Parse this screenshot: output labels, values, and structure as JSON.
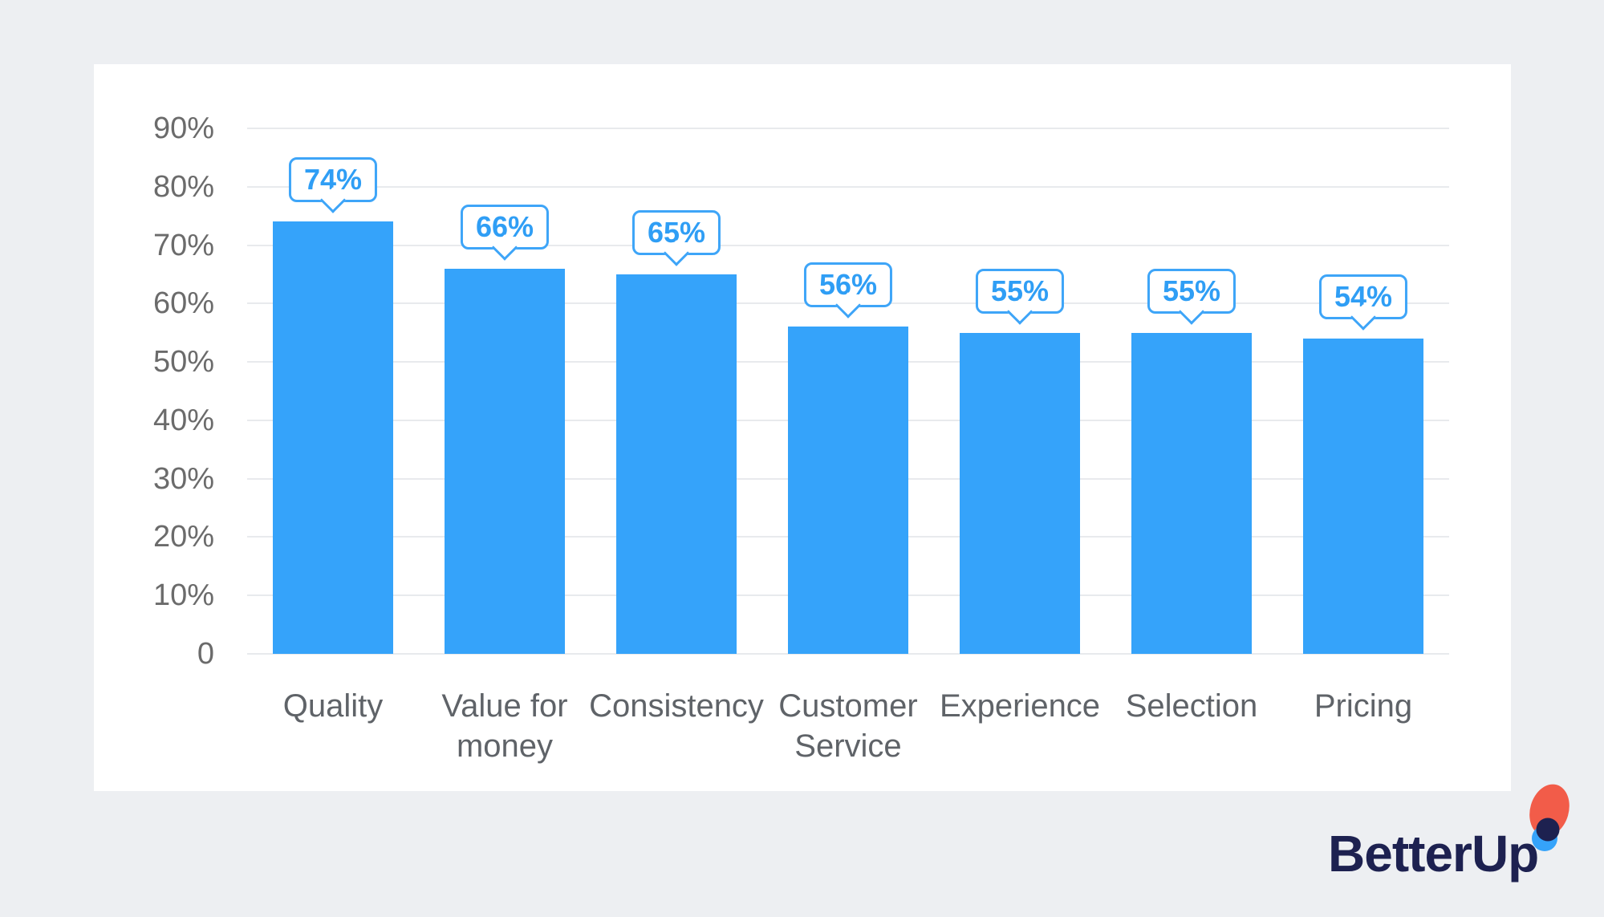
{
  "page": {
    "background_color": "#edeff2",
    "card_color": "#ffffff"
  },
  "chart_data": {
    "type": "bar",
    "categories": [
      "Quality",
      "Value for money",
      "Consistency",
      "Customer Service",
      "Experience",
      "Selection",
      "Pricing"
    ],
    "values": [
      74,
      66,
      65,
      56,
      55,
      55,
      54
    ],
    "value_labels": [
      "74%",
      "66%",
      "65%",
      "56%",
      "55%",
      "55%",
      "54%"
    ],
    "title": "",
    "xlabel": "",
    "ylabel": "",
    "ylim": [
      0,
      90
    ],
    "yticks": [
      {
        "label": "90%",
        "value": 90
      },
      {
        "label": "80%",
        "value": 80
      },
      {
        "label": "70%",
        "value": 70
      },
      {
        "label": "60%",
        "value": 60
      },
      {
        "label": "50%",
        "value": 50
      },
      {
        "label": "40%",
        "value": 40
      },
      {
        "label": "30%",
        "value": 30
      },
      {
        "label": "20%",
        "value": 20
      },
      {
        "label": "10%",
        "value": 10
      },
      {
        "label": "0",
        "value": 0
      }
    ],
    "grid": true,
    "legend": "none",
    "bar_color": "#35a3fa",
    "callout_border_color": "#3ea5f8",
    "callout_text_color": "#2f9ef5",
    "axis_label_color": "#6b6b6b",
    "category_label_color": "#5f6368",
    "gridline_color": "#e8eaed"
  },
  "logo": {
    "text": "BetterUp",
    "navy_color": "#1d2150",
    "orange_color": "#f25c49",
    "blue_color": "#35a3fa"
  }
}
